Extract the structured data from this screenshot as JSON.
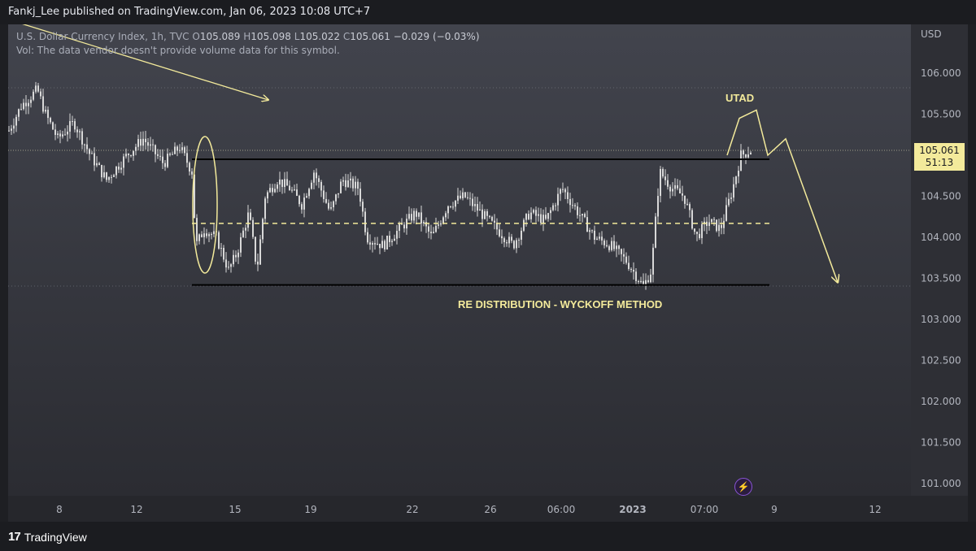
{
  "header": {
    "published": "Fankj_Lee published on TradingView.com, Jan 06, 2023 10:08 UTC+7"
  },
  "legend": {
    "symbol": "U.S. Dollar Currency Index, 1h, TVC",
    "o_label": "O",
    "o": "105.089",
    "h_label": "H",
    "h": "105.098",
    "l_label": "L",
    "l": "105.022",
    "c_label": "C",
    "c": "105.061",
    "change": "−0.029 (−0.03%)",
    "vol": "Vol: The data vendor doesn't provide volume data for this symbol."
  },
  "price_tag": {
    "price": "105.061",
    "countdown": "51:13"
  },
  "footer": {
    "brand": "TradingView",
    "mark": "17"
  },
  "colors": {
    "background": "#1e1f23",
    "plot_top": "#42444d",
    "plot_bottom": "#2b2c32",
    "candle": "#d8d8d8",
    "annotation": "#f3ea9b",
    "range_line": "#000000",
    "text": "#b2b5be",
    "bolt": "#8a54d6"
  },
  "icons": {
    "bolt": "lightning-icon"
  },
  "chart_data": {
    "type": "candlestick",
    "title": "U.S. Dollar Currency Index, 1h, TVC",
    "xlabel": "",
    "ylabel": "",
    "currency_label": "USD",
    "ylim": [
      100.8,
      106.5
    ],
    "y_ticks": [
      "106.000",
      "105.500",
      "105.000",
      "104.500",
      "104.000",
      "103.500",
      "103.000",
      "102.500",
      "102.000",
      "101.500",
      "101.000"
    ],
    "x_ticks": [
      "8",
      "12",
      "15",
      "19",
      "22",
      "26",
      "06:00",
      "2023",
      "07:00",
      "9",
      "12"
    ],
    "grid": false,
    "last_price": 105.061,
    "price_path": [
      [
        0,
        105.3
      ],
      [
        15,
        105.6
      ],
      [
        35,
        105.8
      ],
      [
        45,
        105.5
      ],
      [
        60,
        105.2
      ],
      [
        80,
        105.4
      ],
      [
        100,
        105.0
      ],
      [
        120,
        104.7
      ],
      [
        145,
        105.0
      ],
      [
        165,
        105.2
      ],
      [
        190,
        104.9
      ],
      [
        210,
        105.1
      ],
      [
        225,
        104.8
      ],
      [
        230,
        103.9
      ],
      [
        240,
        104.1
      ],
      [
        255,
        104.0
      ],
      [
        270,
        103.6
      ],
      [
        280,
        103.8
      ],
      [
        295,
        104.3
      ],
      [
        305,
        103.6
      ],
      [
        315,
        104.5
      ],
      [
        330,
        104.7
      ],
      [
        345,
        104.6
      ],
      [
        360,
        104.4
      ],
      [
        375,
        104.8
      ],
      [
        395,
        104.3
      ],
      [
        410,
        104.7
      ],
      [
        430,
        104.6
      ],
      [
        440,
        104.0
      ],
      [
        460,
        103.9
      ],
      [
        480,
        104.1
      ],
      [
        500,
        104.3
      ],
      [
        520,
        104.0
      ],
      [
        540,
        104.4
      ],
      [
        560,
        104.5
      ],
      [
        580,
        104.3
      ],
      [
        600,
        104.1
      ],
      [
        620,
        103.9
      ],
      [
        640,
        104.3
      ],
      [
        660,
        104.2
      ],
      [
        680,
        104.6
      ],
      [
        700,
        104.3
      ],
      [
        720,
        104.0
      ],
      [
        740,
        103.9
      ],
      [
        760,
        103.7
      ],
      [
        780,
        103.4
      ],
      [
        790,
        103.6
      ],
      [
        800,
        104.8
      ],
      [
        815,
        104.6
      ],
      [
        830,
        104.5
      ],
      [
        845,
        104.0
      ],
      [
        860,
        104.2
      ],
      [
        875,
        104.1
      ],
      [
        890,
        104.6
      ],
      [
        900,
        105.0
      ],
      [
        912,
        105.06
      ]
    ],
    "annotations": [
      {
        "type": "text",
        "text": "UTAD",
        "x_label": "9",
        "y": 105.7
      },
      {
        "type": "text",
        "text": "RE DISTRIBUTION - WYCKOFF METHOD",
        "x_label": "26",
        "y": 103.18
      },
      {
        "type": "hline",
        "style": "solid",
        "from": "13",
        "to": "9",
        "y": 104.95
      },
      {
        "type": "hline",
        "style": "dashed",
        "from": "13",
        "to": "9",
        "y": 104.17
      },
      {
        "type": "hline",
        "style": "solid",
        "from": "13",
        "to": "9",
        "y": 103.42
      },
      {
        "type": "projection",
        "y_values": [
          105.45,
          105.55,
          105.0,
          105.2,
          103.45
        ]
      }
    ]
  }
}
